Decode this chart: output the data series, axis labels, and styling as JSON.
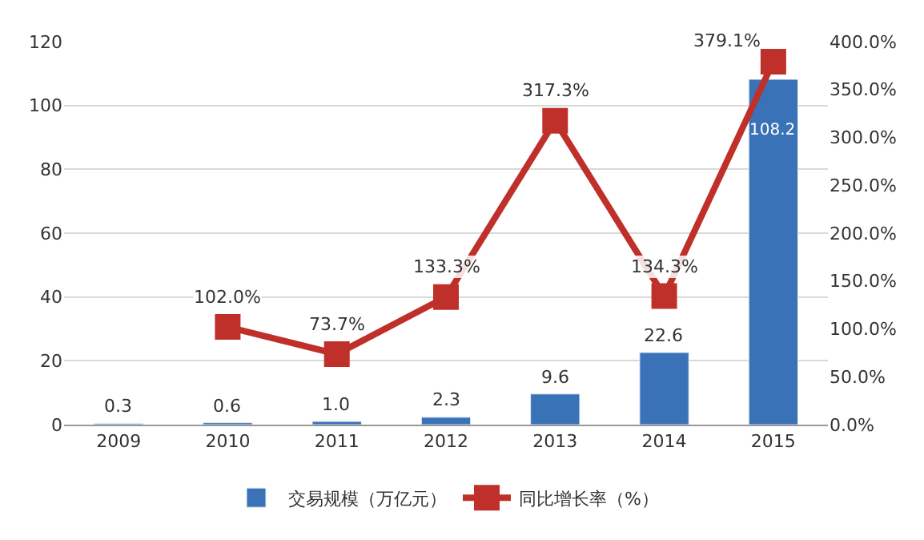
{
  "chart_data": {
    "type": "bar",
    "categories": [
      "2009",
      "2010",
      "2011",
      "2012",
      "2013",
      "2014",
      "2015"
    ],
    "series": [
      {
        "name": "交易规模（万亿元）",
        "type": "bar",
        "color": "#3a72b8",
        "values": [
          0.3,
          0.6,
          1.0,
          2.3,
          9.6,
          22.6,
          108.2
        ],
        "value_labels": [
          "0.3",
          "0.6",
          "1.0",
          "2.3",
          "9.6",
          "22.6",
          "108.2"
        ]
      },
      {
        "name": "同比增长率（%）",
        "type": "line",
        "axis": "y2",
        "color": "#c0302a",
        "marker": "square",
        "values": [
          null,
          102.0,
          73.7,
          133.3,
          317.3,
          134.3,
          379.1
        ],
        "value_labels": [
          null,
          "102.0%",
          "73.7%",
          "133.3%",
          "317.3%",
          "134.3%",
          "379.1%"
        ]
      }
    ],
    "ylim": [
      0,
      120
    ],
    "yticks": [
      0,
      20,
      40,
      60,
      80,
      100,
      120
    ],
    "y2lim": [
      0,
      400
    ],
    "y2ticks": [
      {
        "value": 0,
        "label": "0.0%"
      },
      {
        "value": 50,
        "label": "50.0%"
      },
      {
        "value": 100,
        "label": "100.0%"
      },
      {
        "value": 150,
        "label": "150.0%"
      },
      {
        "value": 200,
        "label": "200.0%"
      },
      {
        "value": 250,
        "label": "250.0%"
      },
      {
        "value": 300,
        "label": "300.0%"
      },
      {
        "value": 350,
        "label": "350.0%"
      },
      {
        "value": 400,
        "label": "400.0%"
      }
    ],
    "grid": "y",
    "legend": "bottom"
  }
}
